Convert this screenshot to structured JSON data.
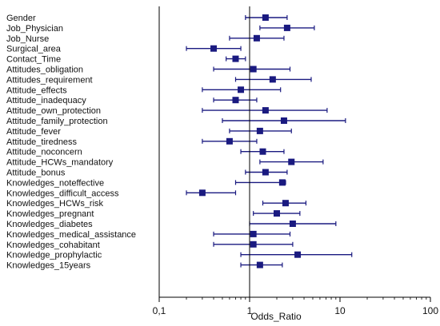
{
  "chart_data": {
    "type": "forest",
    "xlabel": "Odds_Ratio",
    "xscale": "log",
    "xlim": [
      0.1,
      100
    ],
    "xticks": [
      {
        "value": 0.1,
        "label": "0,1"
      },
      {
        "value": 1,
        "label": "1"
      },
      {
        "value": 10,
        "label": "10"
      },
      {
        "value": 100,
        "label": "100"
      }
    ],
    "reference_line": 1,
    "colors": {
      "marker": "#1a1a80",
      "axis": "#000000",
      "reference": "#000000"
    },
    "rows": [
      {
        "label": "Gender",
        "or": 1.5,
        "lo": 0.9,
        "hi": 2.6
      },
      {
        "label": "Job_Physician",
        "or": 2.6,
        "lo": 1.3,
        "hi": 5.2
      },
      {
        "label": "Job_Nurse",
        "or": 1.2,
        "lo": 0.6,
        "hi": 2.4
      },
      {
        "label": "Surgical_area",
        "or": 0.4,
        "lo": 0.2,
        "hi": 0.8
      },
      {
        "label": "Contact_Time",
        "or": 0.7,
        "lo": 0.55,
        "hi": 0.9
      },
      {
        "label": "Attitudes_obligation",
        "or": 1.1,
        "lo": 0.4,
        "hi": 2.8
      },
      {
        "label": "Attitudes_requirement",
        "or": 1.8,
        "lo": 0.7,
        "hi": 4.8
      },
      {
        "label": "Attitude_effects",
        "or": 0.8,
        "lo": 0.3,
        "hi": 2.2
      },
      {
        "label": "Attitude_inadequacy",
        "or": 0.7,
        "lo": 0.4,
        "hi": 1.2
      },
      {
        "label": "Attitude_own_protection",
        "or": 1.5,
        "lo": 0.3,
        "hi": 7.2
      },
      {
        "label": "Attitude_family_protection",
        "or": 2.4,
        "lo": 0.5,
        "hi": 11.5
      },
      {
        "label": "Attitude_fever",
        "or": 1.3,
        "lo": 0.6,
        "hi": 2.9
      },
      {
        "label": "Attitude_tiredness",
        "or": 0.6,
        "lo": 0.3,
        "hi": 1.2
      },
      {
        "label": "Attitude_noconcern",
        "or": 1.4,
        "lo": 0.8,
        "hi": 2.4
      },
      {
        "label": "Attitude_HCWs_mandatory",
        "or": 2.9,
        "lo": 1.3,
        "hi": 6.5
      },
      {
        "label": "Attitude_bonus",
        "or": 1.5,
        "lo": 0.9,
        "hi": 2.6
      },
      {
        "label": "Knowledges_noteffective",
        "or": 2.3,
        "lo": 0.7,
        "hi": 2.5
      },
      {
        "label": "Knowledges_difficult_access",
        "or": 0.3,
        "lo": 0.2,
        "hi": 0.7
      },
      {
        "label": "Knowledges_HCWs_risk",
        "or": 2.5,
        "lo": 1.4,
        "hi": 4.2
      },
      {
        "label": "Knowledges_pregnant",
        "or": 2.0,
        "lo": 1.1,
        "hi": 3.6
      },
      {
        "label": "Knowledges_diabetes",
        "or": 3.0,
        "lo": 1.0,
        "hi": 9.0
      },
      {
        "label": "Knowledges_medical_assistance",
        "or": 1.1,
        "lo": 0.4,
        "hi": 2.8
      },
      {
        "label": "Knowledges_cohabitant",
        "or": 1.1,
        "lo": 0.4,
        "hi": 3.0
      },
      {
        "label": "Knowledge_prophylactic",
        "or": 3.4,
        "lo": 0.8,
        "hi": 13.5
      },
      {
        "label": "Knowledges_15years",
        "or": 1.3,
        "lo": 0.8,
        "hi": 2.3
      }
    ]
  }
}
